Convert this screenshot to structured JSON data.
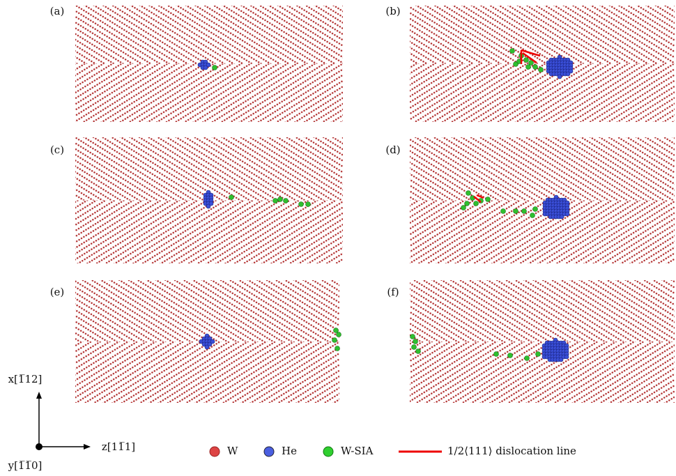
{
  "panels": [
    {
      "label": "(a)"
    },
    {
      "label": "(b)"
    },
    {
      "label": "(c)"
    },
    {
      "label": "(d)"
    },
    {
      "label": "(e)"
    },
    {
      "label": "(f)"
    }
  ],
  "axes": {
    "x": "x[1̅12]",
    "z": "z[11̅1]",
    "y": "y[1̅1̅0]"
  },
  "legend": [
    {
      "label": "W"
    },
    {
      "label": "He"
    },
    {
      "label": "W-SIA"
    },
    {
      "label": "1/2⟨111⟩ dislocation line"
    }
  ]
}
